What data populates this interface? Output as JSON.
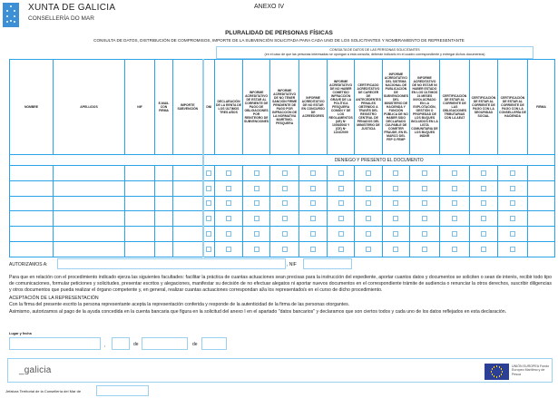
{
  "header": {
    "brand": "XUNTA DE GALICIA",
    "department": "CONSELLERÍA DO MAR",
    "annex": "ANEXO IV",
    "title": "PLURALIDAD DE PERSONAS FÍSICAS",
    "subtitle": "CONSULTA DE DATOS, DISTRIBUCIÓN DE COMPROMISOS, IMPORTE DE LA SUBVENCIÓN SOLICITADA PARA CADA UNO DE LOS SOLICITANTES Y NOMBRAMIENTO DE REPRESENTANTE"
  },
  "consulta": {
    "title": "CONSULTA DE DATOS DE LAS PERSONAS SOLICITANTES",
    "note": "(en el caso de que las personas interesadas se opongan a esta consulta, deberán indicarlo en el cuadro correspondiente y entregar dichos documentos)"
  },
  "table": {
    "columns": [
      "NOMBRE",
      "APELLIDOS",
      "NIF",
      "E-MAIL CON FIRMA",
      "IMPORTE SUBVENCIÓN",
      "DNI",
      "DECLARACIÓN DE LA RENTA DE LOS ÚLTIMOS TRES AÑOS",
      "INFORME ACREDITATIVO DE ESTAR AL CORRIENTE DE PAGO DE OBLIGACIONES POR REINTEGRO DE SUBVENCIONES",
      "INFORME ACREDITATIVO DE NO TENER SANCIÓN FIRME PENDIENTE DE PAGO POR INFRACCIÓN DE LA NORMATIVA MARÍTIMO-PESQUERA",
      "INFORME ACREDITATIVO DE NO ESTAR EN CONCURSO DE ACREEDORES",
      "INFORME ACREDITATIVO DE NO HABER COMETIDO INFRACCIÓN GRAVE DE LA POLÍTICA PESQUERA COMÚN Y DE LOS REGLAMENTOS (UE) Nº 1005/2008 Y (CE) Nº 1224/2009",
      "CERTIFICADO ACREDITATIVO DE CARECER DE ANTECEDENTES PENALES OBTENIDO A TRAVÉS DEL REGISTRO CENTRAL DE PENADOS DEL MINISTERIO DE JUSTICIA",
      "INFORME ACREDITATIVO DEL SISTEMA NACIONAL DE PUBLICACIÓN DE SUBVENCIONES DEL MINISTERIO DE HACIENDA Y FUNCIÓN PÚBLICA DE NO HABER SIDO DECLARADO CULPABLE DE COMETER FRAUDE, EN EL MARCO DEL FEP O FEMP",
      "INFORME ACREDITATIVO DE NO ESTAR NI HABER ESTADO EN LOS ÚLTIMOS 24 MESES INVOLUCRADO EN LA EXPLOTACIÓN, GESTIÓN O PROPIEDAD DE LOS BUQUES INCLUIDOS EN LA LISTA COMUNITARIA DE LOS BUQUES INDNR",
      "CERTIFICACIÓN DE ESTAR AL CORRIENTE DE LAS OBLIGACIONES TRIBUTARIAS CON LA AEAT",
      "CERTIFICACIÓN DE ESTAR AL CORRIENTE DE PAGO CON LA SEGURIDAD SOCIAL",
      "CERTIFICACIÓN DE ESTAR AL CORRIENTE DE PAGO CON LA CONSELLERÍA DE HACIENDA",
      "FIRMA"
    ],
    "deny_label": "DENIEGO Y PRESENTO EL DOCUMENTO"
  },
  "authorize": {
    "label": "AUTORIZAMOS A:",
    "representative": "",
    "nif_label": ", NIF",
    "nif": ""
  },
  "paragraph": "Para que en relación con el procedimiento indicado ejerza las siguientes facultades: facilitar la práctica de cuantas actuaciones sean precisas para la instrucción del expediente, aportar cuantos datos y documentos se soliciten o sean de interés, recibir todo tipo de comunicaciones, formular peticiones y solicitudes, presentar escritos y alegaciones, manifestar su decisión de no efectuar alegatos ni aportar nuevos documentos en el correspondiente trámite de audiencia o renunciar la otros derechos, suscribir diligencias y otros documentos que pueda realizar el órgano competente y, en general, realizar cuantas actuaciones correspondan al/a los representado/s en el curso de dicho procedimiento.",
  "acceptance": {
    "heading": "ACEPTACIÓN DE LA REPRESENTACIÓN",
    "text": "Con la firma del presente escrito la persona representante acepta la representación conferida y responde de la autenticidad de la firma de las personas otorgantes.",
    "bank": "Asimismo, autorizamos al pago de la ayuda concedida en la cuenta bancaria que figura en la solicitud del anexo I en el apartado \"datos bancarios\" y declaramos que son ciertos todos y cada uno de los datos reflejados en esta declaración."
  },
  "date": {
    "label": "Lugar y fecha",
    "comma": ",",
    "de1": "de",
    "de2": "de",
    "place": "",
    "day": "",
    "month": "",
    "year": ""
  },
  "footer": {
    "galicia_logo": "_galicia",
    "eu_text": "UNIÓN EUROPEA Fondo Europeo Marítimo y de Pesca",
    "eu_flag_color": "#2a3f95"
  },
  "jefatura": {
    "label": "Jefatura Territorial de la Consellería del Mar de",
    "value": ""
  },
  "colors": {
    "table_border": "#2aa3e8",
    "box_border": "#9bd0f0",
    "logo_blue": "#3d8fd6"
  }
}
